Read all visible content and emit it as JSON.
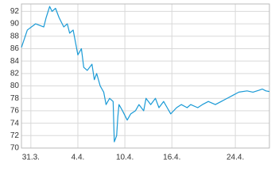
{
  "chart_data": {
    "type": "line",
    "x": [
      -0.8,
      -0.3,
      0.4,
      1.1,
      1.3,
      1.6,
      1.8,
      2.1,
      2.4,
      2.8,
      3.1,
      3.3,
      3.6,
      3.8,
      4.0,
      4.3,
      4.5,
      4.8,
      5.2,
      5.4,
      5.6,
      5.9,
      6.2,
      6.4,
      6.7,
      7.0,
      7.1,
      7.3,
      7.4,
      7.5,
      7.8,
      8.2,
      8.5,
      8.9,
      9.2,
      9.6,
      9.8,
      10.2,
      10.6,
      10.9,
      11.3,
      11.6,
      11.9,
      12.4,
      12.8,
      13.3,
      13.6,
      14.2,
      14.6,
      15.1,
      15.7,
      16.2,
      16.7,
      17.2,
      17.7,
      18.4,
      18.9,
      19.4,
      19.7,
      20.0,
      20.3
    ],
    "series": [
      {
        "color": "#1a9ad6",
        "values": [
          86.2,
          89,
          90,
          89.5,
          91,
          92.8,
          92,
          92.5,
          91,
          89.5,
          90,
          88.5,
          89,
          87,
          85,
          86,
          83,
          82.5,
          83.5,
          81,
          82,
          80,
          79,
          77,
          78,
          77.5,
          71,
          72,
          75,
          77,
          76,
          74.5,
          75.5,
          76,
          77,
          76,
          78,
          77,
          78,
          76.5,
          77.5,
          76.5,
          75.5,
          76.5,
          77,
          76.5,
          77,
          76.5,
          77,
          77.5,
          77,
          77.5,
          78,
          78.5,
          79,
          79.2,
          79,
          79.3,
          79.5,
          79.2,
          79.1
        ]
      }
    ],
    "xlim": [
      -0.8,
      20.3
    ],
    "xticks": [
      {
        "value": 0,
        "label": "31.3."
      },
      {
        "value": 4,
        "label": "4.4."
      },
      {
        "value": 8,
        "label": "10.4."
      },
      {
        "value": 12,
        "label": "16.4."
      },
      {
        "value": 17.4,
        "label": "24.4."
      }
    ],
    "ylim": [
      70,
      93.2
    ],
    "yticks": [
      70,
      72,
      74,
      76,
      78,
      80,
      82,
      84,
      86,
      88,
      90,
      92
    ],
    "grid": true
  }
}
